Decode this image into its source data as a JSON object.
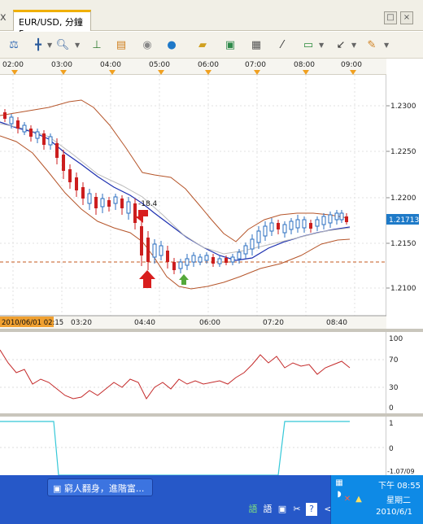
{
  "tab": {
    "close_left": "x",
    "title": "EUR/USD, 分鐘5"
  },
  "window_buttons": {
    "restore": "□",
    "close": "×"
  },
  "toolbar": {
    "icons": [
      "scale-icon",
      "crosshair-icon",
      "zoom-icon",
      "indicator-icon",
      "template-icon",
      "eye-icon",
      "globe-icon",
      "ruler-icon",
      "picture-icon",
      "print-icon",
      "line-tool-icon",
      "bar-style-icon",
      "trend-icon",
      "pen-icon"
    ]
  },
  "time_axis_top": [
    "02:00",
    "03:00",
    "04:00",
    "05:00",
    "06:00",
    "07:00",
    "08:00",
    "09:00"
  ],
  "price_axis": {
    "labels": [
      "1.2300",
      "1.2250",
      "1.2200",
      "1.2150",
      "1.2100"
    ],
    "current_price": "1.21713"
  },
  "annotation": {
    "signal_value": "-18.4"
  },
  "time_axis_bottom": {
    "start_label": "2010/06/01 02:15",
    "labels": [
      "03:20",
      "04:40",
      "06:00",
      "07:20",
      "08:40"
    ]
  },
  "oscillator_axis": [
    "100",
    "70",
    "30",
    "0"
  ],
  "lower_axis": [
    "1",
    "0",
    "-1.07/09"
  ],
  "colors": {
    "candle_up": "#2b6fc0",
    "candle_down": "#cc1e1e",
    "bollinger": "#b5552a",
    "moving_average": "#1c2fb0",
    "oscillator": "#c42a2a",
    "lower_line": "#35c8d8",
    "buy_arrow": "#54a83a",
    "sell_arrow": "#d81e1e",
    "price_label_bg": "#1e7ac8"
  },
  "taskbar": {
    "item_label": "窮人翻身，進階富...",
    "clock_time": "下午 08:55",
    "weekday": "星期二",
    "date": "2010/6/1",
    "quick_icons": [
      "語",
      "語",
      "▣",
      "✂",
      "?",
      "<"
    ]
  }
}
